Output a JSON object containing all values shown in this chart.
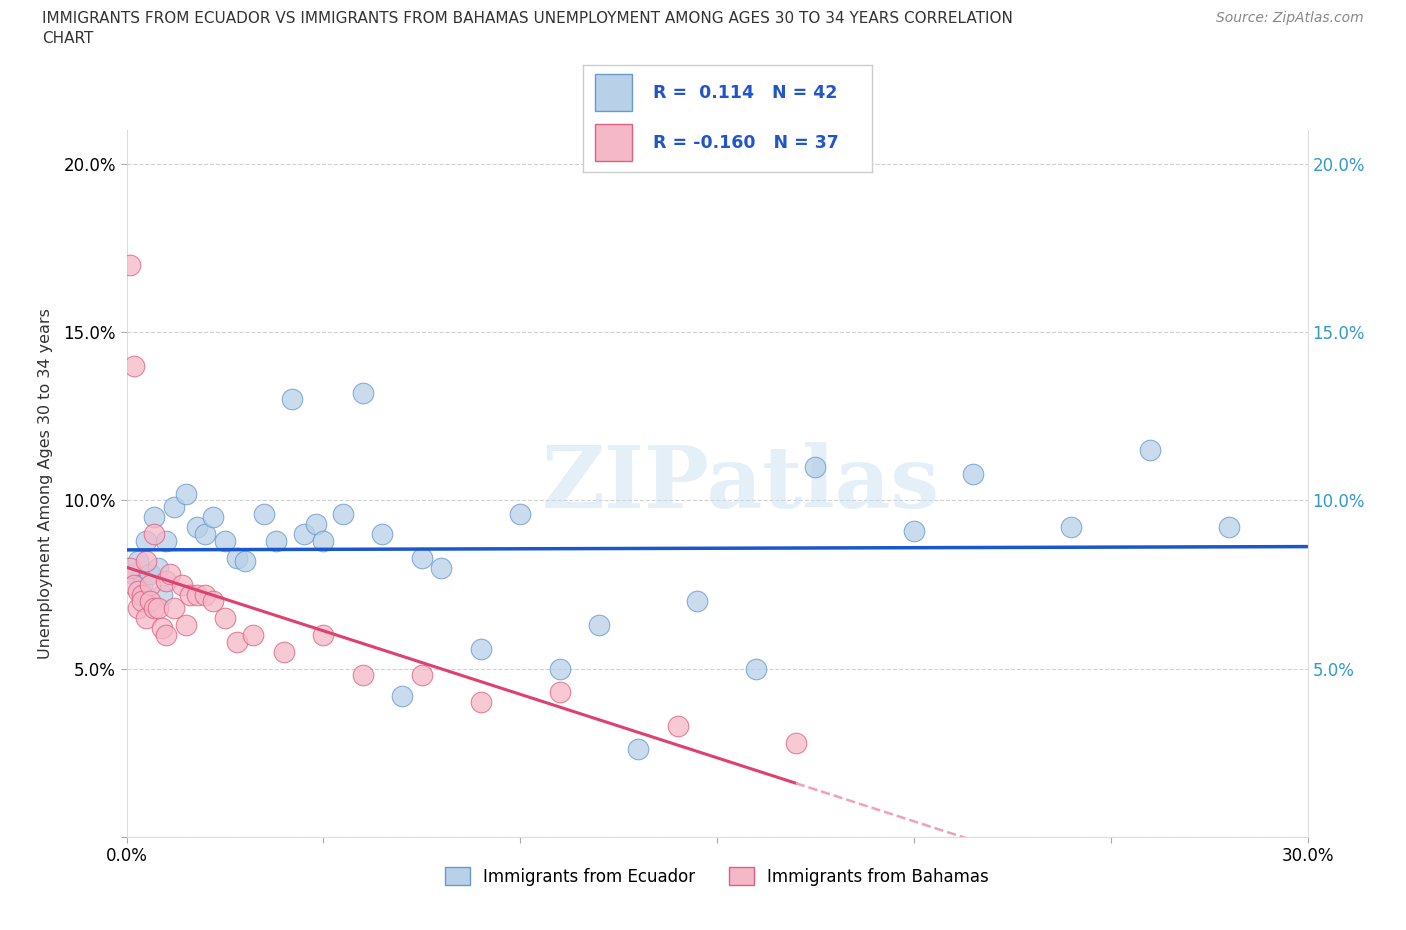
{
  "title_line1": "IMMIGRANTS FROM ECUADOR VS IMMIGRANTS FROM BAHAMAS UNEMPLOYMENT AMONG AGES 30 TO 34 YEARS CORRELATION",
  "title_line2": "CHART",
  "source": "Source: ZipAtlas.com",
  "ylabel": "Unemployment Among Ages 30 to 34 years",
  "xlim": [
    0.0,
    0.3
  ],
  "ylim": [
    0.0,
    0.21
  ],
  "ecuador_color": "#b8d0e8",
  "ecuador_edge": "#6699cc",
  "bahamas_color": "#f5b8c8",
  "bahamas_edge": "#e06080",
  "ecuador_R": 0.114,
  "ecuador_N": 42,
  "bahamas_R": -0.16,
  "bahamas_N": 37,
  "ecuador_line_color": "#1a56cc",
  "bahamas_line_color": "#e04070",
  "bahamas_line_dash": "#f0a0b8",
  "watermark": "ZIPatlas",
  "ecuador_scatter_x": [
    0.002,
    0.003,
    0.004,
    0.005,
    0.006,
    0.007,
    0.008,
    0.009,
    0.01,
    0.012,
    0.015,
    0.018,
    0.02,
    0.022,
    0.025,
    0.028,
    0.03,
    0.035,
    0.038,
    0.042,
    0.045,
    0.048,
    0.05,
    0.055,
    0.06,
    0.065,
    0.07,
    0.075,
    0.08,
    0.09,
    0.1,
    0.11,
    0.12,
    0.13,
    0.145,
    0.16,
    0.175,
    0.2,
    0.215,
    0.24,
    0.26,
    0.28
  ],
  "ecuador_scatter_y": [
    0.078,
    0.082,
    0.075,
    0.088,
    0.078,
    0.095,
    0.08,
    0.072,
    0.088,
    0.098,
    0.102,
    0.092,
    0.09,
    0.095,
    0.088,
    0.083,
    0.082,
    0.096,
    0.088,
    0.13,
    0.09,
    0.093,
    0.088,
    0.096,
    0.132,
    0.09,
    0.042,
    0.083,
    0.08,
    0.056,
    0.096,
    0.05,
    0.063,
    0.026,
    0.07,
    0.05,
    0.11,
    0.091,
    0.108,
    0.092,
    0.115,
    0.092
  ],
  "bahamas_scatter_x": [
    0.001,
    0.001,
    0.002,
    0.002,
    0.003,
    0.003,
    0.004,
    0.004,
    0.005,
    0.005,
    0.006,
    0.006,
    0.007,
    0.007,
    0.008,
    0.009,
    0.01,
    0.01,
    0.011,
    0.012,
    0.014,
    0.015,
    0.016,
    0.018,
    0.02,
    0.022,
    0.025,
    0.028,
    0.032,
    0.04,
    0.05,
    0.06,
    0.075,
    0.09,
    0.11,
    0.14,
    0.17
  ],
  "bahamas_scatter_y": [
    0.17,
    0.08,
    0.14,
    0.075,
    0.073,
    0.068,
    0.072,
    0.07,
    0.065,
    0.082,
    0.075,
    0.07,
    0.09,
    0.068,
    0.068,
    0.062,
    0.076,
    0.06,
    0.078,
    0.068,
    0.075,
    0.063,
    0.072,
    0.072,
    0.072,
    0.07,
    0.065,
    0.058,
    0.06,
    0.055,
    0.06,
    0.048,
    0.048,
    0.04,
    0.043,
    0.033,
    0.028
  ],
  "legend_label_ecuador": "Immigrants from Ecuador",
  "legend_label_bahamas": "Immigrants from Bahamas"
}
